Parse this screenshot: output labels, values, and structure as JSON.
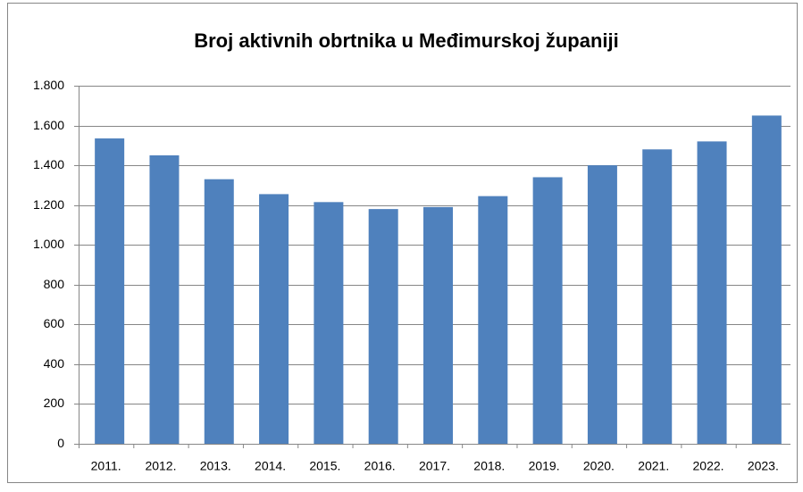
{
  "chart_data": {
    "type": "bar",
    "title": "Broj aktivnih obrtnika u Međimurskoj županiji",
    "categories": [
      "2011.",
      "2012.",
      "2013.",
      "2014.",
      "2015.",
      "2016.",
      "2017.",
      "2018.",
      "2019.",
      "2020.",
      "2021.",
      "2022.",
      "2023."
    ],
    "values": [
      1535,
      1450,
      1330,
      1255,
      1215,
      1180,
      1190,
      1245,
      1340,
      1400,
      1480,
      1520,
      1650
    ],
    "color": "#4f81bd",
    "ylim": [
      0,
      1800
    ],
    "yticks": [
      0,
      200,
      400,
      600,
      800,
      {
        "value": 1000,
        "label": "1.000"
      },
      {
        "value": 1200,
        "label": "1.200"
      },
      {
        "value": 1400,
        "label": "1.400"
      },
      {
        "value": 1600,
        "label": "1.600"
      },
      {
        "value": 1800,
        "label": "1.800"
      }
    ],
    "grid": true
  }
}
